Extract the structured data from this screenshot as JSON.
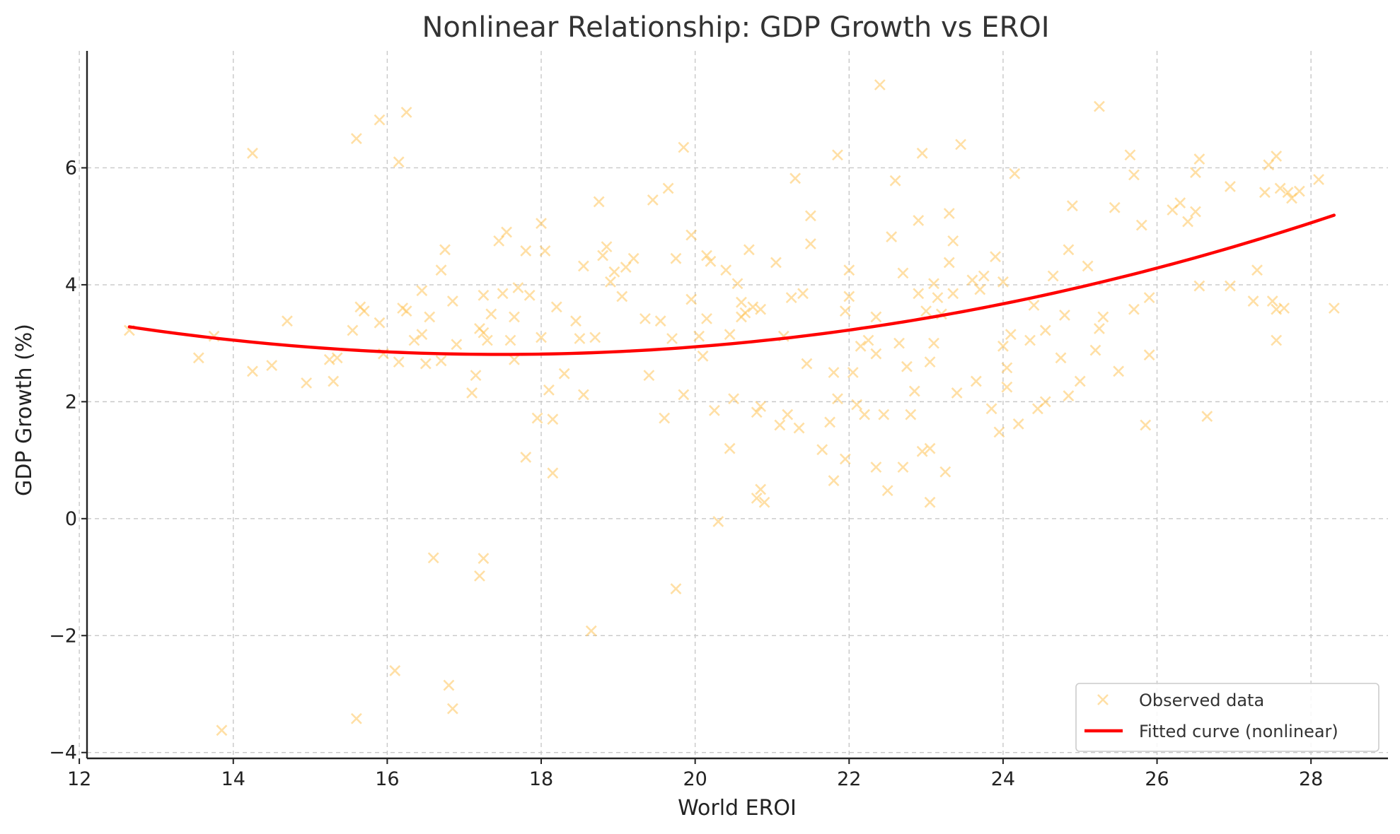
{
  "chart_data": {
    "type": "scatter",
    "title": "Nonlinear Relationship: GDP Growth vs EROI",
    "xlabel": "World EROI",
    "ylabel": "GDP Growth (%)",
    "xlim": [
      12.1,
      29.0
    ],
    "ylim": [
      -4.1,
      8.0
    ],
    "xticks": [
      12,
      14,
      16,
      18,
      20,
      22,
      24,
      26,
      28
    ],
    "yticks": [
      -4,
      -2,
      0,
      2,
      4,
      6
    ],
    "ytick_labels": [
      "−4",
      "−2",
      "0",
      "2",
      "4",
      "6"
    ],
    "grid": true,
    "legend_position": "bottom-right",
    "colors": {
      "observed": "#ffc04d",
      "fitted": "#ff0000"
    },
    "series": [
      {
        "name": "Observed data",
        "kind": "scatter",
        "marker": "x",
        "points": [
          [
            12.65,
            3.22
          ],
          [
            13.55,
            2.75
          ],
          [
            13.75,
            3.12
          ],
          [
            13.85,
            -3.62
          ],
          [
            14.25,
            6.25
          ],
          [
            14.25,
            2.52
          ],
          [
            14.5,
            2.62
          ],
          [
            14.7,
            3.38
          ],
          [
            14.95,
            2.32
          ],
          [
            15.25,
            2.72
          ],
          [
            15.3,
            2.35
          ],
          [
            15.35,
            2.75
          ],
          [
            15.55,
            3.22
          ],
          [
            15.6,
            6.5
          ],
          [
            15.6,
            -3.42
          ],
          [
            15.65,
            3.62
          ],
          [
            15.7,
            3.55
          ],
          [
            15.9,
            3.35
          ],
          [
            15.9,
            6.82
          ],
          [
            15.95,
            2.82
          ],
          [
            16.1,
            -2.6
          ],
          [
            16.15,
            6.1
          ],
          [
            16.15,
            2.68
          ],
          [
            16.2,
            3.6
          ],
          [
            16.25,
            3.55
          ],
          [
            16.25,
            6.95
          ],
          [
            16.35,
            3.05
          ],
          [
            16.45,
            3.15
          ],
          [
            16.45,
            3.9
          ],
          [
            16.5,
            2.65
          ],
          [
            16.55,
            3.45
          ],
          [
            16.6,
            -0.67
          ],
          [
            16.7,
            4.25
          ],
          [
            16.7,
            2.7
          ],
          [
            16.75,
            4.6
          ],
          [
            16.8,
            -2.85
          ],
          [
            16.85,
            -3.25
          ],
          [
            16.85,
            3.72
          ],
          [
            16.9,
            2.98
          ],
          [
            17.1,
            2.15
          ],
          [
            17.15,
            2.45
          ],
          [
            17.2,
            3.25
          ],
          [
            17.2,
            -0.98
          ],
          [
            17.25,
            -0.68
          ],
          [
            17.25,
            3.82
          ],
          [
            17.25,
            3.18
          ],
          [
            17.3,
            3.05
          ],
          [
            17.35,
            3.5
          ],
          [
            17.45,
            4.75
          ],
          [
            17.5,
            3.85
          ],
          [
            17.55,
            4.9
          ],
          [
            17.6,
            3.05
          ],
          [
            17.65,
            2.72
          ],
          [
            17.65,
            3.45
          ],
          [
            17.7,
            3.95
          ],
          [
            17.8,
            4.58
          ],
          [
            17.8,
            1.05
          ],
          [
            17.85,
            3.82
          ],
          [
            17.95,
            1.72
          ],
          [
            18.0,
            5.05
          ],
          [
            18.0,
            3.1
          ],
          [
            18.05,
            4.58
          ],
          [
            18.1,
            2.2
          ],
          [
            18.15,
            1.7
          ],
          [
            18.15,
            0.78
          ],
          [
            18.2,
            3.62
          ],
          [
            18.3,
            2.48
          ],
          [
            18.45,
            3.38
          ],
          [
            18.5,
            3.08
          ],
          [
            18.55,
            4.32
          ],
          [
            18.55,
            2.12
          ],
          [
            18.65,
            -1.92
          ],
          [
            18.7,
            3.1
          ],
          [
            18.75,
            5.42
          ],
          [
            18.8,
            4.5
          ],
          [
            18.85,
            4.65
          ],
          [
            18.9,
            4.05
          ],
          [
            18.95,
            4.22
          ],
          [
            19.05,
            3.8
          ],
          [
            19.1,
            4.3
          ],
          [
            19.2,
            4.45
          ],
          [
            19.35,
            3.42
          ],
          [
            19.4,
            2.45
          ],
          [
            19.45,
            5.45
          ],
          [
            19.55,
            3.38
          ],
          [
            19.6,
            1.72
          ],
          [
            19.65,
            5.65
          ],
          [
            19.7,
            3.08
          ],
          [
            19.75,
            4.45
          ],
          [
            19.75,
            -1.2
          ],
          [
            19.85,
            2.12
          ],
          [
            19.85,
            6.35
          ],
          [
            19.95,
            4.85
          ],
          [
            19.95,
            3.75
          ],
          [
            20.05,
            3.12
          ],
          [
            20.1,
            2.78
          ],
          [
            20.15,
            3.42
          ],
          [
            20.15,
            4.5
          ],
          [
            20.2,
            4.4
          ],
          [
            20.25,
            1.85
          ],
          [
            20.3,
            -0.05
          ],
          [
            20.4,
            4.25
          ],
          [
            20.45,
            1.2
          ],
          [
            20.45,
            3.15
          ],
          [
            20.5,
            2.05
          ],
          [
            20.55,
            4.02
          ],
          [
            20.6,
            3.45
          ],
          [
            20.6,
            3.7
          ],
          [
            20.65,
            3.52
          ],
          [
            20.7,
            4.6
          ],
          [
            20.75,
            3.62
          ],
          [
            20.8,
            1.82
          ],
          [
            20.8,
            0.35
          ],
          [
            20.85,
            3.58
          ],
          [
            20.85,
            1.92
          ],
          [
            20.85,
            0.5
          ],
          [
            20.9,
            0.28
          ],
          [
            21.05,
            4.38
          ],
          [
            21.1,
            1.6
          ],
          [
            21.15,
            3.12
          ],
          [
            21.2,
            1.78
          ],
          [
            21.25,
            3.78
          ],
          [
            21.3,
            5.82
          ],
          [
            21.35,
            1.55
          ],
          [
            21.4,
            3.85
          ],
          [
            21.45,
            2.65
          ],
          [
            21.5,
            4.7
          ],
          [
            21.5,
            5.18
          ],
          [
            21.65,
            1.18
          ],
          [
            21.75,
            1.65
          ],
          [
            21.8,
            0.65
          ],
          [
            21.8,
            2.5
          ],
          [
            21.85,
            2.05
          ],
          [
            21.85,
            6.22
          ],
          [
            21.95,
            3.55
          ],
          [
            21.95,
            1.02
          ],
          [
            22.0,
            4.25
          ],
          [
            22.0,
            3.8
          ],
          [
            22.05,
            2.5
          ],
          [
            22.1,
            1.95
          ],
          [
            22.15,
            2.95
          ],
          [
            22.2,
            1.78
          ],
          [
            22.25,
            3.05
          ],
          [
            22.35,
            2.82
          ],
          [
            22.35,
            0.88
          ],
          [
            22.35,
            3.45
          ],
          [
            22.4,
            7.42
          ],
          [
            22.45,
            1.78
          ],
          [
            22.5,
            0.48
          ],
          [
            22.55,
            4.82
          ],
          [
            22.6,
            5.78
          ],
          [
            22.65,
            3.0
          ],
          [
            22.7,
            4.2
          ],
          [
            22.7,
            0.88
          ],
          [
            22.75,
            2.6
          ],
          [
            22.8,
            1.78
          ],
          [
            22.85,
            2.18
          ],
          [
            22.9,
            3.85
          ],
          [
            22.9,
            5.1
          ],
          [
            22.95,
            6.25
          ],
          [
            22.95,
            1.15
          ],
          [
            23.0,
            3.55
          ],
          [
            23.05,
            2.68
          ],
          [
            23.05,
            1.2
          ],
          [
            23.05,
            0.28
          ],
          [
            23.1,
            3.0
          ],
          [
            23.1,
            4.02
          ],
          [
            23.15,
            3.78
          ],
          [
            23.2,
            3.5
          ],
          [
            23.25,
            0.8
          ],
          [
            23.3,
            5.22
          ],
          [
            23.3,
            4.38
          ],
          [
            23.35,
            4.75
          ],
          [
            23.35,
            3.85
          ],
          [
            23.4,
            2.15
          ],
          [
            23.45,
            6.4
          ],
          [
            23.6,
            4.08
          ],
          [
            23.65,
            2.35
          ],
          [
            23.7,
            3.92
          ],
          [
            23.75,
            4.15
          ],
          [
            23.85,
            1.88
          ],
          [
            23.9,
            4.48
          ],
          [
            23.95,
            1.48
          ],
          [
            24.0,
            2.95
          ],
          [
            24.0,
            4.05
          ],
          [
            24.05,
            2.58
          ],
          [
            24.05,
            2.25
          ],
          [
            24.1,
            3.15
          ],
          [
            24.15,
            5.9
          ],
          [
            24.2,
            1.62
          ],
          [
            24.35,
            3.05
          ],
          [
            24.4,
            3.65
          ],
          [
            24.45,
            1.88
          ],
          [
            24.55,
            2.0
          ],
          [
            24.55,
            3.22
          ],
          [
            24.65,
            4.15
          ],
          [
            24.75,
            2.75
          ],
          [
            24.8,
            3.48
          ],
          [
            24.85,
            2.1
          ],
          [
            24.85,
            4.6
          ],
          [
            24.9,
            5.35
          ],
          [
            25.0,
            2.35
          ],
          [
            25.1,
            4.32
          ],
          [
            25.2,
            2.88
          ],
          [
            25.25,
            7.05
          ],
          [
            25.25,
            3.25
          ],
          [
            25.3,
            3.45
          ],
          [
            25.45,
            5.32
          ],
          [
            25.5,
            2.52
          ],
          [
            25.65,
            6.22
          ],
          [
            25.7,
            5.88
          ],
          [
            25.7,
            3.58
          ],
          [
            25.8,
            5.02
          ],
          [
            25.85,
            1.6
          ],
          [
            25.9,
            3.78
          ],
          [
            25.9,
            2.8
          ],
          [
            26.2,
            5.28
          ],
          [
            26.3,
            5.4
          ],
          [
            26.4,
            5.08
          ],
          [
            26.5,
            5.25
          ],
          [
            26.5,
            5.92
          ],
          [
            26.55,
            6.15
          ],
          [
            26.55,
            3.98
          ],
          [
            26.65,
            1.75
          ],
          [
            26.95,
            5.68
          ],
          [
            26.95,
            3.98
          ],
          [
            27.25,
            3.72
          ],
          [
            27.3,
            4.25
          ],
          [
            27.4,
            5.58
          ],
          [
            27.45,
            6.05
          ],
          [
            27.5,
            3.72
          ],
          [
            27.55,
            3.05
          ],
          [
            27.55,
            6.2
          ],
          [
            27.55,
            3.58
          ],
          [
            27.6,
            5.65
          ],
          [
            27.65,
            3.6
          ],
          [
            27.7,
            5.58
          ],
          [
            27.75,
            5.48
          ],
          [
            27.85,
            5.6
          ],
          [
            28.1,
            5.8
          ],
          [
            28.3,
            3.6
          ]
        ]
      },
      {
        "name": "Fitted curve (nonlinear)",
        "kind": "line",
        "x_range": [
          12.65,
          28.3
        ],
        "model": "quadratic",
        "coefficients": {
          "a": 0.0203,
          "b": -0.7093,
          "c": 9.0046
        }
      }
    ]
  }
}
